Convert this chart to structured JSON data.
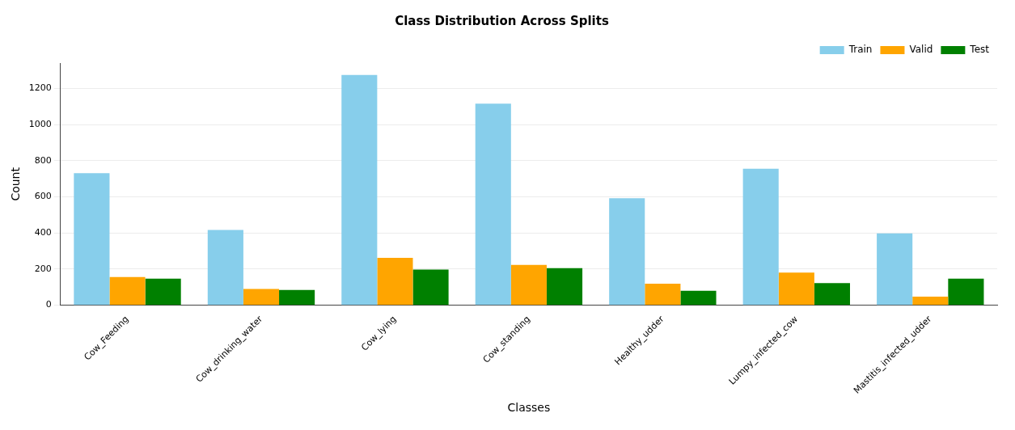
{
  "chart_data": {
    "type": "bar",
    "title": "Class Distribution Across Splits",
    "xlabel": "Classes",
    "ylabel": "Count",
    "categories": [
      "Cow_Feeding",
      "Cow_drinking_water",
      "Cow_lying",
      "Cow_standing",
      "Healthy_udder",
      "Lumpy_infected_cow",
      "Mastitis_infected_udder"
    ],
    "series": [
      {
        "name": "Train",
        "color": "#87ceeb",
        "values": [
          731,
          417,
          1274,
          1115,
          592,
          755,
          397
        ]
      },
      {
        "name": "Valid",
        "color": "#ffa500",
        "values": [
          156,
          90,
          262,
          223,
          119,
          181,
          47
        ]
      },
      {
        "name": "Test",
        "color": "#008000",
        "values": [
          147,
          84,
          197,
          205,
          80,
          122,
          147
        ]
      }
    ],
    "ylim": [
      0,
      1340
    ],
    "yticks": [
      0,
      200,
      400,
      600,
      800,
      1000,
      1200
    ],
    "grid": "y",
    "legend": "top right"
  }
}
